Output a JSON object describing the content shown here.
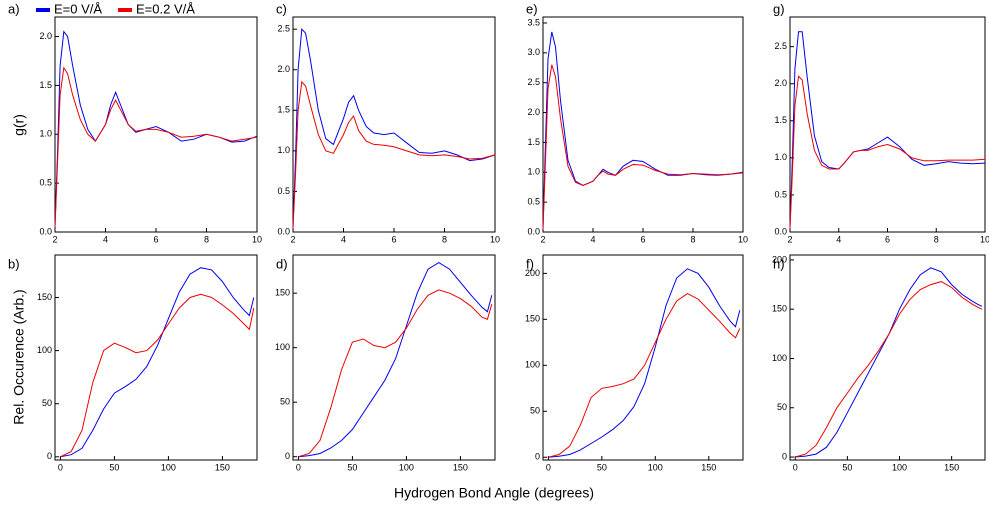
{
  "figure": {
    "xlabel": "Hydrogen Bond Angle (degrees)"
  },
  "chart_data": [
    {
      "type": "line",
      "panel": "a)",
      "ylabel": "g(r)",
      "x": [
        2,
        2.1,
        2.2,
        2.35,
        2.5,
        2.7,
        3.0,
        3.3,
        3.6,
        4.0,
        4.2,
        4.4,
        4.6,
        4.9,
        5.2,
        5.6,
        6.0,
        6.5,
        7.0,
        7.5,
        8.0,
        8.5,
        9.0,
        9.5,
        10
      ],
      "series": [
        {
          "name": "E=0 V/Å",
          "color": "#0000ee",
          "values": [
            0.05,
            0.8,
            1.7,
            2.05,
            2.0,
            1.7,
            1.3,
            1.05,
            0.93,
            1.1,
            1.3,
            1.43,
            1.3,
            1.1,
            1.02,
            1.05,
            1.08,
            1.02,
            0.93,
            0.95,
            1.0,
            0.97,
            0.92,
            0.93,
            0.98
          ]
        },
        {
          "name": "E=0.2 V/Å",
          "color": "#ee0000",
          "values": [
            0.05,
            0.7,
            1.4,
            1.68,
            1.62,
            1.4,
            1.15,
            1.0,
            0.93,
            1.1,
            1.25,
            1.35,
            1.25,
            1.1,
            1.03,
            1.05,
            1.05,
            1.02,
            0.97,
            0.98,
            1.0,
            0.97,
            0.93,
            0.95,
            0.97
          ]
        }
      ],
      "xlim": [
        2,
        10
      ],
      "xticks": [
        2,
        4,
        6,
        8,
        10
      ],
      "ylim": [
        0,
        2.2
      ],
      "yticks": [
        {
          "value": 0,
          "label": "0.0"
        },
        0.5,
        {
          "value": 1,
          "label": "1.0"
        },
        1.5,
        {
          "value": 2,
          "label": "2.0"
        }
      ]
    },
    {
      "type": "line",
      "panel": "b)",
      "ylabel": "Rel. Occurence (Arb.)",
      "x": [
        0,
        10,
        20,
        30,
        40,
        50,
        60,
        70,
        80,
        90,
        100,
        110,
        120,
        130,
        140,
        150,
        160,
        170,
        175,
        179
      ],
      "series": [
        {
          "color": "#0000ee",
          "values": [
            0,
            2,
            8,
            25,
            45,
            60,
            66,
            73,
            85,
            105,
            130,
            155,
            172,
            178,
            176,
            165,
            150,
            138,
            133,
            150
          ]
        },
        {
          "color": "#ee0000",
          "values": [
            0,
            5,
            25,
            70,
            100,
            107,
            103,
            98,
            100,
            110,
            125,
            140,
            150,
            153,
            150,
            143,
            135,
            125,
            120,
            140
          ]
        }
      ],
      "xlim": [
        -5,
        182
      ],
      "xticks": [
        0,
        50,
        100,
        150
      ],
      "ylim": [
        -3,
        190
      ],
      "yticks": [
        0,
        50,
        100,
        150
      ]
    },
    {
      "type": "line",
      "panel": "c)",
      "x": [
        2,
        2.1,
        2.2,
        2.35,
        2.5,
        2.7,
        3.0,
        3.3,
        3.6,
        4.0,
        4.2,
        4.4,
        4.6,
        4.9,
        5.2,
        5.6,
        6.0,
        6.5,
        7.0,
        7.5,
        8.0,
        8.5,
        9.0,
        9.5,
        10
      ],
      "series": [
        {
          "color": "#0000ee",
          "values": [
            0.05,
            0.9,
            2.0,
            2.5,
            2.45,
            2.1,
            1.5,
            1.15,
            1.08,
            1.4,
            1.6,
            1.68,
            1.5,
            1.3,
            1.22,
            1.2,
            1.22,
            1.1,
            0.98,
            0.97,
            1.0,
            0.95,
            0.88,
            0.9,
            0.95
          ]
        },
        {
          "color": "#ee0000",
          "values": [
            0.05,
            0.7,
            1.5,
            1.85,
            1.8,
            1.55,
            1.2,
            1.0,
            0.97,
            1.2,
            1.35,
            1.43,
            1.25,
            1.12,
            1.08,
            1.07,
            1.05,
            1.0,
            0.95,
            0.94,
            0.95,
            0.93,
            0.9,
            0.91,
            0.95
          ]
        }
      ],
      "xlim": [
        2,
        10
      ],
      "xticks": [
        2,
        4,
        6,
        8,
        10
      ],
      "ylim": [
        0,
        2.65
      ],
      "yticks": [
        {
          "value": 0,
          "label": "0.0"
        },
        0.5,
        {
          "value": 1,
          "label": "1.0"
        },
        1.5,
        {
          "value": 2,
          "label": "2.0"
        },
        2.5
      ]
    },
    {
      "type": "line",
      "panel": "d)",
      "x": [
        0,
        10,
        20,
        30,
        40,
        50,
        60,
        70,
        80,
        90,
        100,
        110,
        120,
        130,
        140,
        150,
        160,
        170,
        175,
        179
      ],
      "series": [
        {
          "color": "#0000ee",
          "values": [
            0,
            1,
            3,
            8,
            15,
            25,
            40,
            55,
            70,
            90,
            120,
            150,
            172,
            178,
            172,
            160,
            148,
            137,
            133,
            148
          ]
        },
        {
          "color": "#ee0000",
          "values": [
            0,
            3,
            15,
            45,
            80,
            105,
            108,
            102,
            100,
            105,
            118,
            135,
            148,
            153,
            150,
            145,
            138,
            128,
            126,
            140
          ]
        }
      ],
      "xlim": [
        -5,
        182
      ],
      "xticks": [
        0,
        50,
        100,
        150
      ],
      "ylim": [
        -3,
        185
      ],
      "yticks": [
        0,
        50,
        100,
        150
      ]
    },
    {
      "type": "line",
      "panel": "e)",
      "x": [
        2,
        2.1,
        2.2,
        2.35,
        2.5,
        2.7,
        3.0,
        3.3,
        3.6,
        4.0,
        4.2,
        4.4,
        4.6,
        4.9,
        5.2,
        5.6,
        6.0,
        6.5,
        7.0,
        7.5,
        8.0,
        8.5,
        9.0,
        9.5,
        10
      ],
      "series": [
        {
          "color": "#0000ee",
          "values": [
            0.05,
            1.5,
            2.9,
            3.35,
            3.1,
            2.2,
            1.2,
            0.85,
            0.78,
            0.85,
            0.95,
            1.05,
            1.0,
            0.95,
            1.1,
            1.2,
            1.18,
            1.05,
            0.95,
            0.95,
            0.98,
            0.96,
            0.95,
            0.97,
            1.0
          ]
        },
        {
          "color": "#ee0000",
          "values": [
            0.05,
            1.2,
            2.4,
            2.8,
            2.6,
            1.9,
            1.1,
            0.83,
            0.78,
            0.85,
            0.95,
            1.02,
            0.97,
            0.95,
            1.05,
            1.13,
            1.12,
            1.03,
            0.97,
            0.96,
            0.98,
            0.97,
            0.96,
            0.97,
            0.99
          ]
        }
      ],
      "xlim": [
        2,
        10
      ],
      "xticks": [
        2,
        4,
        6,
        8,
        10
      ],
      "ylim": [
        0,
        3.6
      ],
      "yticks": [
        {
          "value": 0,
          "label": "0.0"
        },
        0.5,
        {
          "value": 1,
          "label": "1.0"
        },
        1.5,
        {
          "value": 2,
          "label": "2.0"
        },
        2.5,
        {
          "value": 3,
          "label": "3.0"
        },
        3.5
      ]
    },
    {
      "type": "line",
      "panel": "f)",
      "x": [
        0,
        10,
        20,
        30,
        40,
        50,
        60,
        70,
        80,
        90,
        100,
        110,
        120,
        130,
        140,
        150,
        160,
        170,
        175,
        179
      ],
      "series": [
        {
          "color": "#0000ee",
          "values": [
            0,
            1,
            3,
            8,
            15,
            22,
            30,
            40,
            55,
            80,
            120,
            165,
            195,
            205,
            200,
            185,
            165,
            148,
            142,
            160
          ]
        },
        {
          "color": "#ee0000",
          "values": [
            0,
            3,
            12,
            35,
            65,
            75,
            77,
            80,
            85,
            100,
            125,
            150,
            170,
            178,
            172,
            160,
            148,
            135,
            130,
            140
          ]
        }
      ],
      "xlim": [
        -5,
        182
      ],
      "xticks": [
        0,
        50,
        100,
        150
      ],
      "ylim": [
        -3,
        220
      ],
      "yticks": [
        0,
        50,
        100,
        150,
        200
      ]
    },
    {
      "type": "line",
      "panel": "g)",
      "x": [
        2,
        2.1,
        2.2,
        2.35,
        2.5,
        2.7,
        3.0,
        3.3,
        3.6,
        4.0,
        4.2,
        4.4,
        4.6,
        4.9,
        5.2,
        5.6,
        6.0,
        6.5,
        7.0,
        7.5,
        8.0,
        8.5,
        9.0,
        9.5,
        10
      ],
      "series": [
        {
          "color": "#0000ee",
          "values": [
            0.05,
            1.0,
            2.2,
            2.7,
            2.7,
            2.1,
            1.3,
            0.95,
            0.87,
            0.85,
            0.92,
            1.0,
            1.08,
            1.1,
            1.12,
            1.2,
            1.28,
            1.15,
            0.98,
            0.9,
            0.92,
            0.95,
            0.93,
            0.92,
            0.93
          ]
        },
        {
          "color": "#ee0000",
          "values": [
            0.05,
            0.8,
            1.7,
            2.1,
            2.05,
            1.6,
            1.1,
            0.9,
            0.85,
            0.85,
            0.92,
            1.0,
            1.08,
            1.1,
            1.1,
            1.15,
            1.18,
            1.12,
            1.0,
            0.96,
            0.96,
            0.97,
            0.97,
            0.97,
            0.98
          ]
        }
      ],
      "xlim": [
        2,
        10
      ],
      "xticks": [
        2,
        4,
        6,
        8,
        10
      ],
      "ylim": [
        0,
        2.9
      ],
      "yticks": [
        {
          "value": 0,
          "label": "0.0"
        },
        0.5,
        {
          "value": 1,
          "label": "1.0"
        },
        1.5,
        {
          "value": 2,
          "label": "2.0"
        },
        2.5
      ]
    },
    {
      "type": "line",
      "panel": "h)",
      "x": [
        0,
        10,
        20,
        30,
        40,
        50,
        60,
        70,
        80,
        90,
        100,
        110,
        120,
        130,
        140,
        150,
        160,
        170,
        175,
        179
      ],
      "series": [
        {
          "color": "#0000ee",
          "values": [
            0,
            1,
            3,
            10,
            25,
            45,
            65,
            85,
            105,
            125,
            150,
            170,
            185,
            192,
            188,
            175,
            165,
            158,
            155,
            153
          ]
        },
        {
          "color": "#ee0000",
          "values": [
            0,
            3,
            12,
            30,
            50,
            65,
            80,
            93,
            108,
            125,
            145,
            160,
            170,
            175,
            178,
            172,
            162,
            155,
            152,
            150
          ]
        }
      ],
      "xlim": [
        -5,
        182
      ],
      "xticks": [
        0,
        50,
        100,
        150
      ],
      "ylim": [
        -3,
        205
      ],
      "yticks": [
        0,
        50,
        100,
        150,
        200
      ]
    }
  ]
}
